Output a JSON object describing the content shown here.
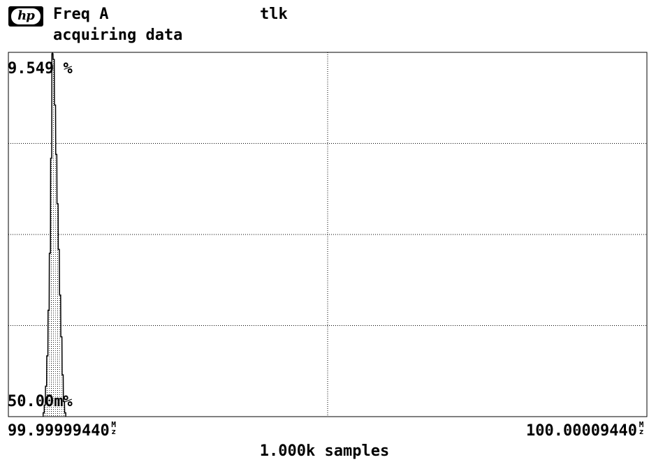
{
  "header": {
    "logo": "hp",
    "title": "Freq A",
    "status": "acquiring data",
    "mode_indicator": "tlk"
  },
  "colors": {
    "background": "#ffffff",
    "foreground": "#000000",
    "grid": "#000000"
  },
  "axis": {
    "y_max_label": "9.549 %",
    "y_min_label": "50.00m%",
    "x_min_label": "99.99999440",
    "x_max_label": "100.00009440",
    "x_unit_top": "M",
    "x_unit_bottom": "z",
    "samples_label": "1.000k samples"
  },
  "chart_data": {
    "type": "bar",
    "title": "",
    "xlabel": "1.000k samples",
    "ylabel": "",
    "x_range": [
      99.9999944,
      100.0000944
    ],
    "y_range_percent": [
      0.05,
      9.549
    ],
    "grid": true,
    "fill": "dotted",
    "bins": [
      {
        "x": 99.99999993,
        "y": 0.1
      },
      {
        "x": 100.0000001,
        "y": 0.3
      },
      {
        "x": 100.0000003,
        "y": 0.8
      },
      {
        "x": 100.0000005,
        "y": 1.6
      },
      {
        "x": 100.0000007,
        "y": 2.8
      },
      {
        "x": 100.0000009,
        "y": 4.3
      },
      {
        "x": 100.0000011,
        "y": 6.8
      },
      {
        "x": 100.0000013,
        "y": 9.549
      },
      {
        "x": 100.0000015,
        "y": 9.4
      },
      {
        "x": 100.0000017,
        "y": 8.2
      },
      {
        "x": 100.0000019,
        "y": 6.9
      },
      {
        "x": 100.0000021,
        "y": 5.6
      },
      {
        "x": 100.0000023,
        "y": 4.4
      },
      {
        "x": 100.0000025,
        "y": 3.2
      },
      {
        "x": 100.0000027,
        "y": 2.1
      },
      {
        "x": 100.0000029,
        "y": 1.1
      },
      {
        "x": 100.0000031,
        "y": 0.4
      },
      {
        "x": 100.0000033,
        "y": 0.1
      }
    ]
  }
}
